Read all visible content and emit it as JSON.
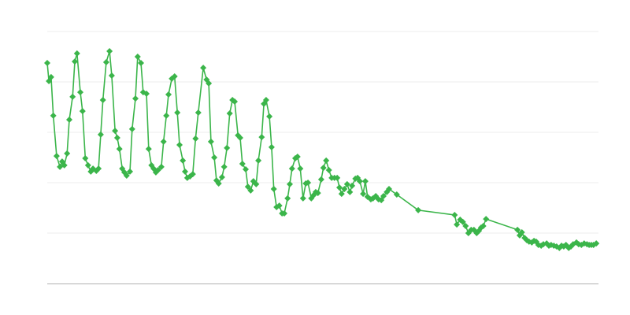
{
  "chart_data": {
    "type": "line",
    "title": "",
    "xlabel": "",
    "ylabel": "",
    "xlim": [
      0,
      100
    ],
    "ylim": [
      0,
      100
    ],
    "y_gridlines": [
      20,
      40,
      60,
      80,
      100
    ],
    "grid": true,
    "legend": "none",
    "marker": "diamond",
    "color": "#3bb54a",
    "series": [
      {
        "x": [
          0,
          0.3,
          0.7,
          1.1,
          1.7,
          2.3,
          2.7,
          3.1,
          3.6,
          4,
          4.6,
          5,
          5.4,
          6,
          6.4,
          6.9,
          7.4,
          7.9,
          8.3,
          8.9,
          9.3,
          9.7,
          10.1,
          10.7,
          11.3,
          11.7,
          12.3,
          12.7,
          13.1,
          13.6,
          14,
          14.4,
          15,
          15.4,
          16,
          16.4,
          17,
          17.4,
          18,
          18.4,
          18.9,
          19.3,
          19.7,
          20.1,
          20.7,
          21.1,
          21.6,
          22,
          22.6,
          23.1,
          23.6,
          24,
          24.6,
          25,
          25.4,
          25.9,
          26.4,
          26.9,
          27.4,
          28.3,
          28.9,
          29.3,
          29.7,
          30.3,
          30.7,
          31.1,
          31.7,
          32.1,
          32.6,
          33.1,
          33.6,
          34,
          34.6,
          35,
          35.4,
          36,
          36.4,
          36.9,
          37.4,
          37.9,
          38.3,
          38.9,
          39.3,
          39.7,
          40.3,
          40.7,
          41.1,
          41.6,
          42.1,
          42.6,
          43,
          43.6,
          44,
          44.4,
          45,
          45.4,
          45.9,
          46.4,
          46.9,
          47.3,
          47.9,
          48.3,
          48.7,
          49.1,
          49.7,
          50.1,
          50.6,
          51.1,
          51.6,
          52.1,
          52.6,
          53,
          53.4,
          53.9,
          54.4,
          54.9,
          55.3,
          55.9,
          56.3,
          56.7,
          57.3,
          57.7,
          58.1,
          58.7,
          59.1,
          59.6,
          60.1,
          60.6,
          61,
          61.6,
          62,
          63.4,
          67.3,
          73.9,
          74.3,
          74.9,
          75.4,
          75.9,
          76.4,
          76.9,
          77.4,
          77.9,
          78.3,
          78.7,
          79.1,
          79.6,
          85.3,
          85.7,
          86.1,
          86.6,
          87,
          87.4,
          87.9,
          88.3,
          88.7,
          89.1,
          89.6,
          90,
          90.6,
          91,
          91.4,
          91.9,
          92.4,
          92.9,
          93.3,
          93.7,
          94.1,
          94.6,
          95,
          95.4,
          96,
          96.4,
          96.9,
          97.4,
          97.9,
          98.3,
          98.7,
          99.1,
          99.6
        ],
        "y": [
          87.5,
          80.3,
          81.9,
          66.6,
          50.6,
          46.3,
          48.4,
          46.9,
          51.6,
          65,
          74.1,
          88.1,
          91.3,
          75.9,
          68.4,
          49.7,
          46.9,
          44.4,
          45.6,
          44.7,
          45.6,
          59.1,
          72.8,
          87.8,
          92.2,
          82.5,
          60.6,
          57.8,
          53.4,
          45.6,
          44.1,
          42.8,
          44.4,
          61.3,
          73.4,
          90,
          87.5,
          75.9,
          75.3,
          53.4,
          46.9,
          45.6,
          44.1,
          45,
          46.3,
          56.3,
          66.6,
          75,
          81.3,
          82.2,
          67.8,
          55,
          48.8,
          44.4,
          41.9,
          42.5,
          43.4,
          57.5,
          67.8,
          85.6,
          80.9,
          79.4,
          56.3,
          50,
          40.9,
          39.7,
          42.2,
          46.3,
          53.8,
          67.5,
          72.8,
          72.2,
          58.8,
          57.8,
          47.5,
          45.3,
          38.4,
          36.9,
          40.6,
          39.4,
          48.8,
          58.1,
          71.3,
          72.8,
          66.3,
          54.1,
          37.5,
          30.3,
          30.9,
          27.8,
          27.8,
          33.8,
          39.4,
          45.6,
          49.7,
          50.3,
          45.6,
          33.8,
          39.7,
          40,
          33.8,
          35,
          36.3,
          35.9,
          41.3,
          45.9,
          48.8,
          45,
          41.9,
          41.9,
          41.9,
          38.1,
          35.6,
          37.5,
          39.4,
          36.3,
          38.8,
          41.6,
          41.9,
          40.6,
          35.6,
          40.6,
          34.4,
          33.4,
          33.8,
          34.7,
          33.4,
          33.1,
          34.7,
          36.3,
          37.5,
          35.3,
          29.1,
          27.2,
          23.4,
          25.3,
          24.4,
          22.8,
          20,
          21.3,
          21.3,
          20,
          20.9,
          22.2,
          22.8,
          25.6,
          21.3,
          19.1,
          20.3,
          18.1,
          17.2,
          16.6,
          16.3,
          16.9,
          16.6,
          15.3,
          15,
          15.6,
          15.9,
          15,
          15.3,
          15,
          14.7,
          14.1,
          15,
          14.7,
          15.3,
          14.1,
          14.7,
          15.6,
          16.3,
          15.6,
          15.3,
          15.9,
          15.6,
          15.3,
          15.3,
          15.3,
          15.9
        ]
      }
    ]
  }
}
